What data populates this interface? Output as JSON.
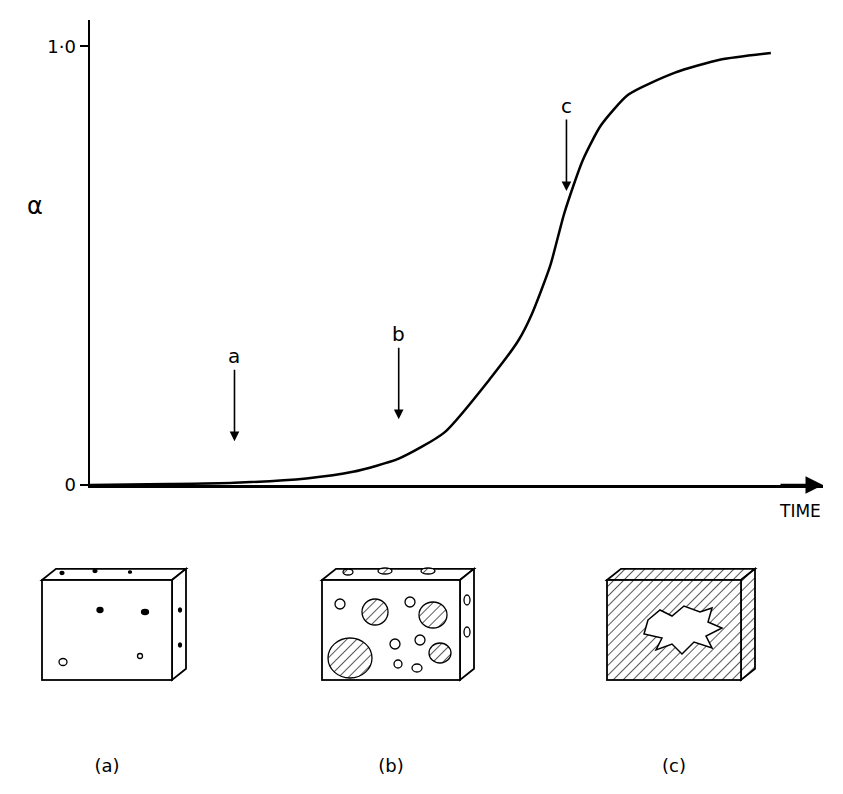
{
  "chart_data": {
    "type": "line",
    "ylabel": "α",
    "xlabel": "TIME",
    "x": [
      0,
      1.11,
      2.05,
      3.07,
      3.73,
      4.38,
      5.03,
      5.69,
      6.08,
      6.27,
      6.53,
      6.73,
      6.99,
      7.25,
      7.64,
      8.3,
      8.95,
      9.66
    ],
    "values": [
      0,
      0.002,
      0.005,
      0.015,
      0.03,
      0.06,
      0.12,
      0.245,
      0.33,
      0.39,
      0.5,
      0.62,
      0.74,
      0.82,
      0.89,
      0.94,
      0.97,
      0.985
    ],
    "color": "#000000",
    "xlim": [
      0,
      10.4
    ],
    "ylim": [
      0,
      1.06
    ],
    "xticks": [],
    "yticks": [
      0,
      {
        "value": 1,
        "label": "1·0"
      }
    ],
    "grid": false,
    "tick_labels": "y",
    "annotations": [
      {
        "text": "a",
        "x": 2.05,
        "y": 0.1
      },
      {
        "text": "b",
        "x": 4.38,
        "y": 0.15
      },
      {
        "text": "c",
        "x": 6.76,
        "y": 0.67
      }
    ]
  },
  "illustrations": [
    {
      "label": "(a)"
    },
    {
      "label": "(b)"
    },
    {
      "label": "(c)"
    }
  ]
}
